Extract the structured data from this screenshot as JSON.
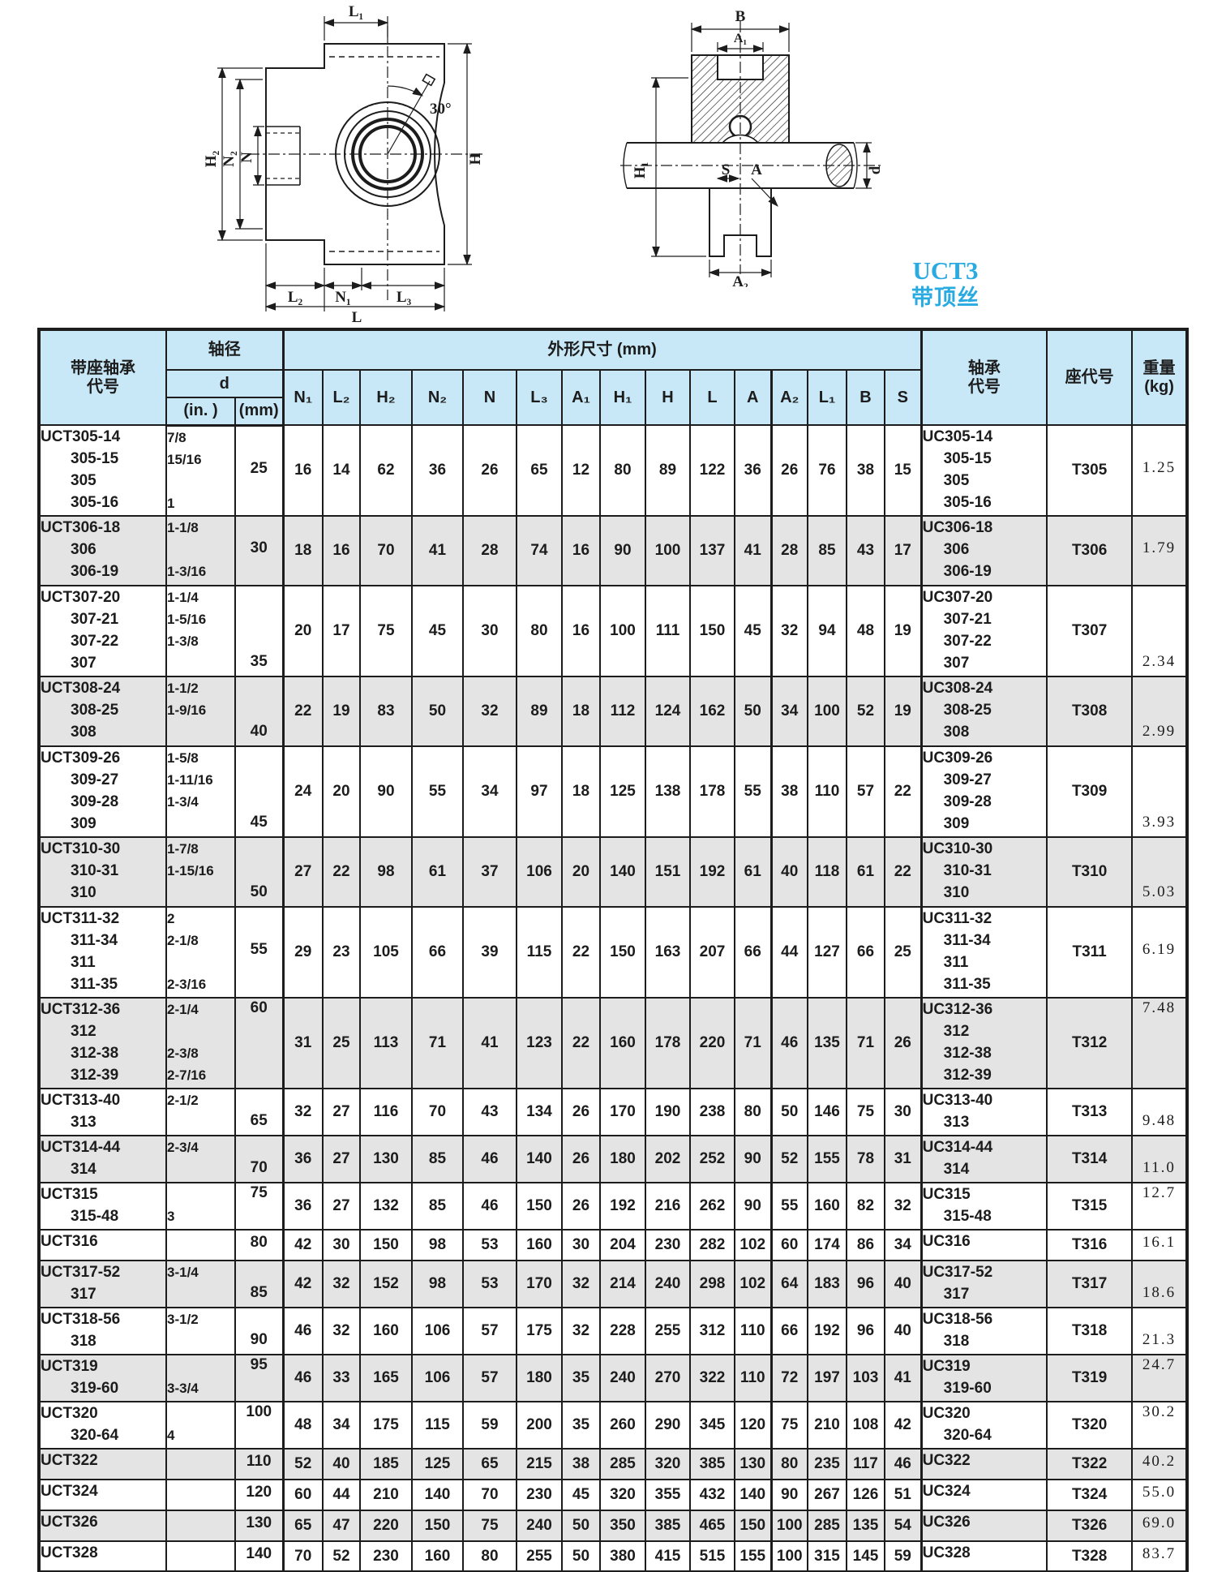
{
  "caption": {
    "series": "UCT3",
    "subtitle": "带顶丝"
  },
  "drawing_left": {
    "labels": {
      "L1": "L₁",
      "H2": "H₂",
      "N2": "N₂",
      "N": "N",
      "L2": "L₂",
      "N1": "N₁",
      "L3": "L₃",
      "L": "L",
      "H": "H",
      "angle": "30°"
    }
  },
  "drawing_right": {
    "labels": {
      "B": "B",
      "A1": "A₁",
      "H1": "H₁",
      "S": "S",
      "A": "A",
      "d": "d",
      "A2": "A₂"
    }
  },
  "table": {
    "header": {
      "unit_code_line1": "带座轴承",
      "unit_code_line2": "代号",
      "shaft_dia": "轴径",
      "d": "d",
      "in_label": "(in. )",
      "mm_label": "(mm)",
      "dims_group": "外形尺寸 (mm)",
      "dim_cols": [
        "N₁",
        "L₂",
        "H₂",
        "N₂",
        "N",
        "L₃",
        "A₁",
        "H₁",
        "H",
        "L",
        "A",
        "A₂",
        "L₁",
        "B",
        "S"
      ],
      "bearing_code_line1": "轴承",
      "bearing_code_line2": "代号",
      "seat_code": "座代号",
      "weight_line1": "重量",
      "weight_line2": "(kg)"
    },
    "rows": [
      {
        "code": [
          "UCT305-14",
          "305-15",
          "305",
          "305-16"
        ],
        "d_in": [
          "7/8",
          "15/16",
          "",
          "1"
        ],
        "d_mm": "25",
        "mm_align": "c",
        "dims": [
          "16",
          "14",
          "62",
          "36",
          "26",
          "65",
          "12",
          "80",
          "89",
          "122",
          "36",
          "26",
          "76",
          "38",
          "15"
        ],
        "bearing": [
          "UC305-14",
          "305-15",
          "305",
          "305-16"
        ],
        "seat": "T305",
        "weight": "1.25",
        "wt_align": "c",
        "shaded": false
      },
      {
        "code": [
          "UCT306-18",
          "306",
          "306-19"
        ],
        "d_in": [
          "1-1/8",
          "",
          "1-3/16"
        ],
        "d_mm": "30",
        "mm_align": "c",
        "dims": [
          "18",
          "16",
          "70",
          "41",
          "28",
          "74",
          "16",
          "90",
          "100",
          "137",
          "41",
          "28",
          "85",
          "43",
          "17"
        ],
        "bearing": [
          "UC306-18",
          "306",
          "306-19"
        ],
        "seat": "T306",
        "weight": "1.79",
        "wt_align": "c",
        "shaded": true
      },
      {
        "code": [
          "UCT307-20",
          "307-21",
          "307-22",
          "307"
        ],
        "d_in": [
          "1-1/4",
          "1-5/16",
          "1-3/8",
          ""
        ],
        "d_mm": "35",
        "mm_align": "b",
        "dims": [
          "20",
          "17",
          "75",
          "45",
          "30",
          "80",
          "16",
          "100",
          "111",
          "150",
          "45",
          "32",
          "94",
          "48",
          "19"
        ],
        "bearing": [
          "UC307-20",
          "307-21",
          "307-22",
          "307"
        ],
        "seat": "T307",
        "weight": "2.34",
        "wt_align": "b",
        "shaded": false
      },
      {
        "code": [
          "UCT308-24",
          "308-25",
          "308"
        ],
        "d_in": [
          "1-1/2",
          "1-9/16",
          ""
        ],
        "d_mm": "40",
        "mm_align": "b",
        "dims": [
          "22",
          "19",
          "83",
          "50",
          "32",
          "89",
          "18",
          "112",
          "124",
          "162",
          "50",
          "34",
          "100",
          "52",
          "19"
        ],
        "bearing": [
          "UC308-24",
          "308-25",
          "308"
        ],
        "seat": "T308",
        "weight": "2.99",
        "wt_align": "b",
        "shaded": true
      },
      {
        "code": [
          "UCT309-26",
          "309-27",
          "309-28",
          "309"
        ],
        "d_in": [
          "1-5/8",
          "1-11/16",
          "1-3/4",
          ""
        ],
        "d_mm": "45",
        "mm_align": "b",
        "dims": [
          "24",
          "20",
          "90",
          "55",
          "34",
          "97",
          "18",
          "125",
          "138",
          "178",
          "55",
          "38",
          "110",
          "57",
          "22"
        ],
        "bearing": [
          "UC309-26",
          "309-27",
          "309-28",
          "309"
        ],
        "seat": "T309",
        "weight": "3.93",
        "wt_align": "b",
        "shaded": false
      },
      {
        "code": [
          "UCT310-30",
          "310-31",
          "310"
        ],
        "d_in": [
          "1-7/8",
          "1-15/16",
          ""
        ],
        "d_mm": "50",
        "mm_align": "b",
        "dims": [
          "27",
          "22",
          "98",
          "61",
          "37",
          "106",
          "20",
          "140",
          "151",
          "192",
          "61",
          "40",
          "118",
          "61",
          "22"
        ],
        "bearing": [
          "UC310-30",
          "310-31",
          "310"
        ],
        "seat": "T310",
        "weight": "5.03",
        "wt_align": "b",
        "shaded": true
      },
      {
        "code": [
          "UCT311-32",
          "311-34",
          "311",
          "311-35"
        ],
        "d_in": [
          "2",
          "2-1/8",
          "",
          "2-3/16"
        ],
        "d_mm": "55",
        "mm_align": "c",
        "dims": [
          "29",
          "23",
          "105",
          "66",
          "39",
          "115",
          "22",
          "150",
          "163",
          "207",
          "66",
          "44",
          "127",
          "66",
          "25"
        ],
        "bearing": [
          "UC311-32",
          "311-34",
          "311",
          "311-35"
        ],
        "seat": "T311",
        "weight": "6.19",
        "wt_align": "c",
        "shaded": false
      },
      {
        "code": [
          "UCT312-36",
          "312",
          "312-38",
          "312-39"
        ],
        "d_in": [
          "2-1/4",
          "",
          "2-3/8",
          "2-7/16"
        ],
        "d_mm": "60",
        "mm_align": "t",
        "dims": [
          "31",
          "25",
          "113",
          "71",
          "41",
          "123",
          "22",
          "160",
          "178",
          "220",
          "71",
          "46",
          "135",
          "71",
          "26"
        ],
        "bearing": [
          "UC312-36",
          "312",
          "312-38",
          "312-39"
        ],
        "seat": "T312",
        "weight": "7.48",
        "wt_align": "t",
        "shaded": true
      },
      {
        "code": [
          "UCT313-40",
          "313"
        ],
        "d_in": [
          "2-1/2",
          ""
        ],
        "d_mm": "65",
        "mm_align": "b",
        "dims": [
          "32",
          "27",
          "116",
          "70",
          "43",
          "134",
          "26",
          "170",
          "190",
          "238",
          "80",
          "50",
          "146",
          "75",
          "30"
        ],
        "bearing": [
          "UC313-40",
          "313"
        ],
        "seat": "T313",
        "weight": "9.48",
        "wt_align": "b",
        "shaded": false
      },
      {
        "code": [
          "UCT314-44",
          "314"
        ],
        "d_in": [
          "2-3/4",
          ""
        ],
        "d_mm": "70",
        "mm_align": "b",
        "dims": [
          "36",
          "27",
          "130",
          "85",
          "46",
          "140",
          "26",
          "180",
          "202",
          "252",
          "90",
          "52",
          "155",
          "78",
          "31"
        ],
        "bearing": [
          "UC314-44",
          "314"
        ],
        "seat": "T314",
        "weight": "11.0",
        "wt_align": "b",
        "shaded": true
      },
      {
        "code": [
          "UCT315",
          "315-48"
        ],
        "d_in": [
          "",
          "3"
        ],
        "d_mm": "75",
        "mm_align": "t",
        "dims": [
          "36",
          "27",
          "132",
          "85",
          "46",
          "150",
          "26",
          "192",
          "216",
          "262",
          "90",
          "55",
          "160",
          "82",
          "32"
        ],
        "bearing": [
          "UC315",
          "315-48"
        ],
        "seat": "T315",
        "weight": "12.7",
        "wt_align": "t",
        "shaded": false
      },
      {
        "code": [
          "UCT316"
        ],
        "d_in": [
          ""
        ],
        "d_mm": "80",
        "mm_align": "c",
        "dims": [
          "42",
          "30",
          "150",
          "98",
          "53",
          "160",
          "30",
          "204",
          "230",
          "282",
          "102",
          "60",
          "174",
          "86",
          "34"
        ],
        "bearing": [
          "UC316"
        ],
        "seat": "T316",
        "weight": "16.1",
        "wt_align": "c",
        "shaded": false
      },
      {
        "code": [
          "UCT317-52",
          "317"
        ],
        "d_in": [
          "3-1/4",
          ""
        ],
        "d_mm": "85",
        "mm_align": "b",
        "dims": [
          "42",
          "32",
          "152",
          "98",
          "53",
          "170",
          "32",
          "214",
          "240",
          "298",
          "102",
          "64",
          "183",
          "96",
          "40"
        ],
        "bearing": [
          "UC317-52",
          "317"
        ],
        "seat": "T317",
        "weight": "18.6",
        "wt_align": "b",
        "shaded": true
      },
      {
        "code": [
          "UCT318-56",
          "318"
        ],
        "d_in": [
          "3-1/2",
          ""
        ],
        "d_mm": "90",
        "mm_align": "b",
        "dims": [
          "46",
          "32",
          "160",
          "106",
          "57",
          "175",
          "32",
          "228",
          "255",
          "312",
          "110",
          "66",
          "192",
          "96",
          "40"
        ],
        "bearing": [
          "UC318-56",
          "318"
        ],
        "seat": "T318",
        "weight": "21.3",
        "wt_align": "b",
        "shaded": false
      },
      {
        "code": [
          "UCT319",
          "319-60"
        ],
        "d_in": [
          "",
          "3-3/4"
        ],
        "d_mm": "95",
        "mm_align": "t",
        "dims": [
          "46",
          "33",
          "165",
          "106",
          "57",
          "180",
          "35",
          "240",
          "270",
          "322",
          "110",
          "72",
          "197",
          "103",
          "41"
        ],
        "bearing": [
          "UC319",
          "319-60"
        ],
        "seat": "T319",
        "weight": "24.7",
        "wt_align": "t",
        "shaded": true
      },
      {
        "code": [
          "UCT320",
          "320-64"
        ],
        "d_in": [
          "",
          "4"
        ],
        "d_mm": "100",
        "mm_align": "t",
        "dims": [
          "48",
          "34",
          "175",
          "115",
          "59",
          "200",
          "35",
          "260",
          "290",
          "345",
          "120",
          "75",
          "210",
          "108",
          "42"
        ],
        "bearing": [
          "UC320",
          "320-64"
        ],
        "seat": "T320",
        "weight": "30.2",
        "wt_align": "t",
        "shaded": false
      },
      {
        "code": [
          "UCT322"
        ],
        "d_in": [
          ""
        ],
        "d_mm": "110",
        "mm_align": "c",
        "dims": [
          "52",
          "40",
          "185",
          "125",
          "65",
          "215",
          "38",
          "285",
          "320",
          "385",
          "130",
          "80",
          "235",
          "117",
          "46"
        ],
        "bearing": [
          "UC322"
        ],
        "seat": "T322",
        "weight": "40.2",
        "wt_align": "c",
        "shaded": true
      },
      {
        "code": [
          "UCT324"
        ],
        "d_in": [
          ""
        ],
        "d_mm": "120",
        "mm_align": "c",
        "dims": [
          "60",
          "44",
          "210",
          "140",
          "70",
          "230",
          "45",
          "320",
          "355",
          "432",
          "140",
          "90",
          "267",
          "126",
          "51"
        ],
        "bearing": [
          "UC324"
        ],
        "seat": "T324",
        "weight": "55.0",
        "wt_align": "c",
        "shaded": false
      },
      {
        "code": [
          "UCT326"
        ],
        "d_in": [
          ""
        ],
        "d_mm": "130",
        "mm_align": "c",
        "dims": [
          "65",
          "47",
          "220",
          "150",
          "75",
          "240",
          "50",
          "350",
          "385",
          "465",
          "150",
          "100",
          "285",
          "135",
          "54"
        ],
        "bearing": [
          "UC326"
        ],
        "seat": "T326",
        "weight": "69.0",
        "wt_align": "c",
        "shaded": true
      },
      {
        "code": [
          "UCT328"
        ],
        "d_in": [
          ""
        ],
        "d_mm": "140",
        "mm_align": "c",
        "dims": [
          "70",
          "52",
          "230",
          "160",
          "80",
          "255",
          "50",
          "380",
          "415",
          "515",
          "155",
          "100",
          "315",
          "145",
          "59"
        ],
        "bearing": [
          "UC328"
        ],
        "seat": "T328",
        "weight": "83.7",
        "wt_align": "c",
        "shaded": false
      }
    ]
  }
}
